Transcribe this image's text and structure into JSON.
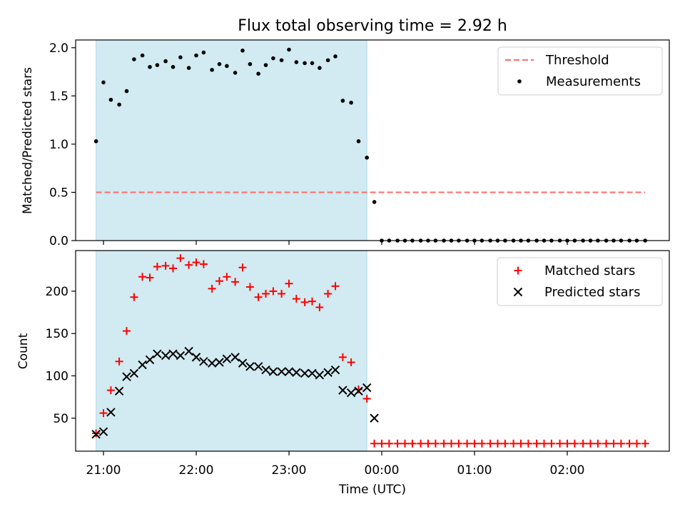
{
  "colors": {
    "shade": "#add8e6",
    "threshold": "#ff7070",
    "measurements": "#000000",
    "matched": "#ff0000",
    "predicted": "#000000"
  },
  "chart_data": [
    {
      "type": "scatter",
      "title": "Flux total observing time = 2.92 h",
      "xlabel": "",
      "ylabel": "Matched/Predicted stars",
      "x_unit": "hours after 21:00 UTC",
      "xlim": [
        -0.3,
        6.1
      ],
      "ylim": [
        0,
        2.08
      ],
      "yticks": [
        0.0,
        0.5,
        1.0,
        1.5,
        2.0
      ],
      "ytick_labels": [
        "0.0",
        "0.5",
        "1.0",
        "1.5",
        "2.0"
      ],
      "xtick_labels_visible": false,
      "shaded_span": [
        -0.08,
        2.84
      ],
      "legend_position": "top-right",
      "threshold": {
        "name": "Threshold",
        "value": 0.5,
        "x_range": [
          -0.08,
          5.84
        ],
        "style": "dashed"
      },
      "series": [
        {
          "name": "Measurements",
          "marker": "dot",
          "x": [
            -0.08,
            0.0,
            0.08,
            0.17,
            0.25,
            0.33,
            0.42,
            0.5,
            0.58,
            0.67,
            0.75,
            0.83,
            0.92,
            1.0,
            1.08,
            1.17,
            1.25,
            1.33,
            1.42,
            1.5,
            1.58,
            1.67,
            1.75,
            1.83,
            1.92,
            2.0,
            2.08,
            2.17,
            2.25,
            2.33,
            2.42,
            2.5,
            2.58,
            2.67,
            2.75,
            2.84,
            2.92,
            3.0,
            3.08,
            3.17,
            3.25,
            3.33,
            3.42,
            3.5,
            3.58,
            3.67,
            3.75,
            3.83,
            3.92,
            4.0,
            4.08,
            4.17,
            4.25,
            4.33,
            4.42,
            4.5,
            4.58,
            4.67,
            4.75,
            4.83,
            4.92,
            5.0,
            5.08,
            5.17,
            5.25,
            5.33,
            5.42,
            5.5,
            5.58,
            5.67,
            5.75,
            5.84
          ],
          "y": [
            1.03,
            1.64,
            1.46,
            1.41,
            1.55,
            1.88,
            1.92,
            1.8,
            1.82,
            1.86,
            1.8,
            1.9,
            1.79,
            1.92,
            1.95,
            1.77,
            1.83,
            1.81,
            1.74,
            1.97,
            1.83,
            1.73,
            1.82,
            1.89,
            1.87,
            1.98,
            1.85,
            1.84,
            1.84,
            1.79,
            1.87,
            1.91,
            1.45,
            1.43,
            1.03,
            0.86,
            0.4,
            0,
            0,
            0,
            0,
            0,
            0,
            0,
            0,
            0,
            0,
            0,
            0,
            0,
            0,
            0,
            0,
            0,
            0,
            0,
            0,
            0,
            0,
            0,
            0,
            0,
            0,
            0,
            0,
            0,
            0,
            0,
            0,
            0,
            0,
            0
          ]
        }
      ]
    },
    {
      "type": "scatter",
      "title": "",
      "xlabel": "Time (UTC)",
      "ylabel": "Count",
      "x_unit": "hours after 21:00 UTC",
      "xlim": [
        -0.3,
        6.1
      ],
      "ylim": [
        11,
        248
      ],
      "yticks": [
        50,
        100,
        150,
        200
      ],
      "ytick_labels": [
        "50",
        "100",
        "150",
        "200"
      ],
      "xticks": [
        0,
        1,
        2,
        3,
        4,
        5
      ],
      "xtick_labels": [
        "21:00",
        "22:00",
        "23:00",
        "00:00",
        "01:00",
        "02:00"
      ],
      "shaded_span": [
        -0.08,
        2.84
      ],
      "legend_position": "top-right",
      "series": [
        {
          "name": "Matched stars",
          "marker": "plus",
          "x": [
            -0.08,
            0.0,
            0.08,
            0.17,
            0.25,
            0.33,
            0.42,
            0.5,
            0.58,
            0.67,
            0.75,
            0.83,
            0.92,
            1.0,
            1.08,
            1.17,
            1.25,
            1.33,
            1.42,
            1.5,
            1.58,
            1.67,
            1.75,
            1.83,
            1.92,
            2.0,
            2.08,
            2.17,
            2.25,
            2.33,
            2.42,
            2.5,
            2.58,
            2.67,
            2.75,
            2.84,
            2.92,
            3.0,
            3.08,
            3.17,
            3.25,
            3.33,
            3.42,
            3.5,
            3.58,
            3.67,
            3.75,
            3.83,
            3.92,
            4.0,
            4.08,
            4.17,
            4.25,
            4.33,
            4.42,
            4.5,
            4.58,
            4.67,
            4.75,
            4.83,
            4.92,
            5.0,
            5.08,
            5.17,
            5.25,
            5.33,
            5.42,
            5.5,
            5.58,
            5.67,
            5.75,
            5.84
          ],
          "y": [
            32,
            56,
            83,
            117,
            153,
            193,
            217,
            216,
            229,
            230,
            227,
            239,
            231,
            234,
            232,
            203,
            212,
            217,
            211,
            228,
            205,
            193,
            197,
            200,
            197,
            209,
            191,
            187,
            188,
            181,
            197,
            206,
            122,
            116,
            84,
            73,
            20,
            20,
            20,
            20,
            20,
            20,
            20,
            20,
            20,
            20,
            20,
            20,
            20,
            20,
            20,
            20,
            20,
            20,
            20,
            20,
            20,
            20,
            20,
            20,
            20,
            20,
            20,
            20,
            20,
            20,
            20,
            20,
            20,
            20,
            20,
            20
          ]
        },
        {
          "name": "Predicted stars",
          "marker": "x",
          "x": [
            -0.08,
            0.0,
            0.08,
            0.17,
            0.25,
            0.33,
            0.42,
            0.5,
            0.58,
            0.67,
            0.75,
            0.83,
            0.92,
            1.0,
            1.08,
            1.17,
            1.25,
            1.33,
            1.42,
            1.5,
            1.58,
            1.67,
            1.75,
            1.83,
            1.92,
            2.0,
            2.08,
            2.17,
            2.25,
            2.33,
            2.42,
            2.5,
            2.58,
            2.67,
            2.75,
            2.84,
            2.92
          ],
          "y": [
            31,
            34,
            57,
            82,
            99,
            103,
            113,
            119,
            126,
            124,
            126,
            124,
            129,
            122,
            117,
            115,
            116,
            120,
            122,
            115,
            111,
            111,
            107,
            105,
            105,
            105,
            104,
            103,
            103,
            101,
            104,
            107,
            83,
            80,
            82,
            86,
            50
          ]
        }
      ]
    }
  ]
}
